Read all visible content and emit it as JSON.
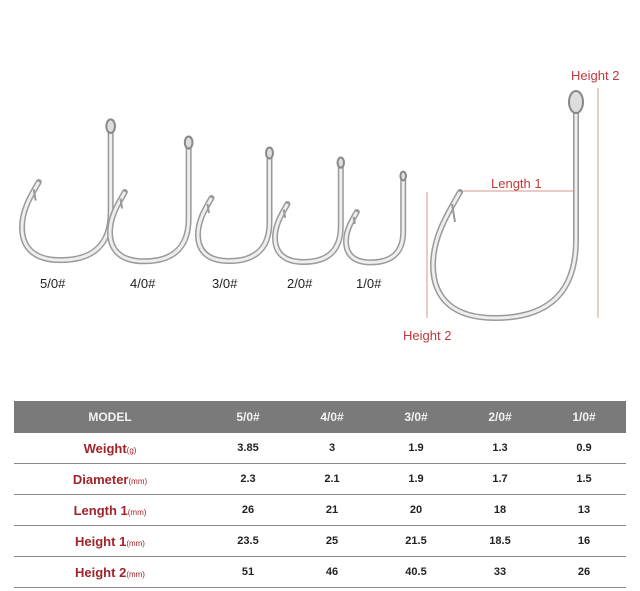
{
  "hooks": [
    {
      "label": "5/0#"
    },
    {
      "label": "4/0#"
    },
    {
      "label": "3/0#"
    },
    {
      "label": "2/0#"
    },
    {
      "label": "1/0#"
    }
  ],
  "diagram": {
    "height_top": "Height 2",
    "length": "Length 1",
    "height_left": "Height 2"
  },
  "colors": {
    "accent": "#c0393b",
    "header_bg": "#7a7a7a"
  },
  "table": {
    "headers": [
      "MODEL",
      "5/0#",
      "4/0#",
      "3/0#",
      "2/0#",
      "1/0#"
    ],
    "rows": [
      {
        "name": "Weight",
        "unit": "(g)",
        "values": [
          "3.85",
          "3",
          "1.9",
          "1.3",
          "0.9"
        ]
      },
      {
        "name": "Diameter",
        "unit": "(mm)",
        "values": [
          "2.3",
          "2.1",
          "1.9",
          "1.7",
          "1.5"
        ]
      },
      {
        "name": "Length 1",
        "unit": "(mm)",
        "values": [
          "26",
          "21",
          "20",
          "18",
          "13"
        ]
      },
      {
        "name": "Height 1",
        "unit": "(mm)",
        "values": [
          "23.5",
          "25",
          "21.5",
          "18.5",
          "16"
        ]
      },
      {
        "name": "Height 2",
        "unit": "(mm)",
        "values": [
          "51",
          "46",
          "40.5",
          "33",
          "26"
        ]
      }
    ]
  }
}
